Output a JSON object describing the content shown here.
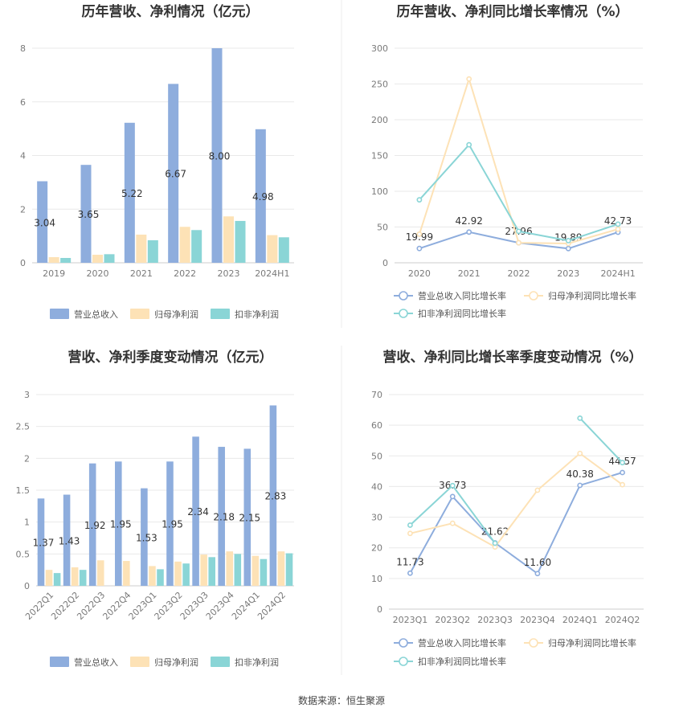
{
  "source": "数据来源：恒生聚源",
  "chart_data": [
    {
      "type": "bar",
      "title": "历年营收、净利情况（亿元）",
      "categories": [
        "2019",
        "2020",
        "2021",
        "2022",
        "2023",
        "2024H1"
      ],
      "ylim": [
        0,
        8
      ],
      "yticks": [
        "0",
        "2",
        "4",
        "6",
        "8"
      ],
      "grid": true,
      "legend_position": "bottom",
      "series": [
        {
          "name": "营业总收入",
          "color": "#8eaddd",
          "values": [
            3.04,
            3.65,
            5.22,
            6.67,
            8.0,
            4.98
          ],
          "labels": [
            "3.04",
            "3.65",
            "5.22",
            "6.67",
            "8.00",
            "4.98"
          ]
        },
        {
          "name": "归母净利润",
          "color": "#fde2b6",
          "values": [
            0.21,
            0.3,
            1.05,
            1.34,
            1.73,
            1.03
          ],
          "labels": []
        },
        {
          "name": "扣非净利润",
          "color": "#8ad5d6",
          "values": [
            0.18,
            0.32,
            0.84,
            1.22,
            1.56,
            0.95
          ],
          "labels": []
        }
      ]
    },
    {
      "type": "line",
      "title": "历年营收、净利同比增长率情况（%）",
      "categories": [
        "2020",
        "2021",
        "2022",
        "2023",
        "2024H1"
      ],
      "ylim": [
        0,
        300
      ],
      "yticks": [
        "0",
        "50",
        "100",
        "150",
        "200",
        "250",
        "300"
      ],
      "grid": true,
      "legend_position": "bottom",
      "series": [
        {
          "name": "营业总收入同比增长率",
          "color": "#8eaddd",
          "values": [
            19.99,
            42.92,
            27.96,
            19.89,
            42.73
          ],
          "labels": [
            "19.99",
            "42.92",
            "27.96",
            "19.89",
            "42.73"
          ]
        },
        {
          "name": "归母净利润同比增长率",
          "color": "#fde2b6",
          "values": [
            40,
            257,
            28,
            27,
            47
          ],
          "labels": []
        },
        {
          "name": "扣非净利润同比增长率",
          "color": "#8ad5d6",
          "values": [
            88,
            165,
            44,
            31,
            54
          ],
          "labels": []
        }
      ]
    },
    {
      "type": "bar",
      "title": "营收、净利季度变动情况（亿元）",
      "categories": [
        "2022Q1",
        "2022Q2",
        "2022Q3",
        "2022Q4",
        "2023Q1",
        "2023Q2",
        "2023Q3",
        "2023Q4",
        "2024Q1",
        "2024Q2"
      ],
      "ylim": [
        0,
        3
      ],
      "yticks": [
        "0",
        "0.5",
        "1",
        "1.5",
        "2",
        "2.5",
        "3"
      ],
      "grid": true,
      "legend_position": "bottom",
      "series": [
        {
          "name": "营业总收入",
          "color": "#8eaddd",
          "values": [
            1.37,
            1.43,
            1.92,
            1.95,
            1.53,
            1.95,
            2.34,
            2.18,
            2.15,
            2.83
          ],
          "labels": [
            "1.37",
            "1.43",
            "1.92",
            "1.95",
            "1.53",
            "1.95",
            "2.34",
            "2.18",
            "2.15",
            "2.83"
          ]
        },
        {
          "name": "归母净利润",
          "color": "#fde2b6",
          "values": [
            0.25,
            0.29,
            0.4,
            0.39,
            0.31,
            0.38,
            0.49,
            0.54,
            0.47,
            0.54
          ],
          "labels": []
        },
        {
          "name": "扣非净利润",
          "color": "#8ad5d6",
          "values": [
            0.2,
            0.25,
            null,
            null,
            0.26,
            0.35,
            0.45,
            0.5,
            0.42,
            0.51
          ],
          "labels": []
        }
      ]
    },
    {
      "type": "line",
      "title": "营收、净利同比增长率季度变动情况（%）",
      "categories": [
        "2023Q1",
        "2023Q2",
        "2023Q3",
        "2023Q4",
        "2024Q1",
        "2024Q2"
      ],
      "ylim": [
        0,
        70
      ],
      "yticks": [
        "0",
        "10",
        "20",
        "30",
        "40",
        "50",
        "60",
        "70"
      ],
      "grid": true,
      "legend_position": "bottom",
      "series": [
        {
          "name": "营业总收入同比增长率",
          "color": "#8eaddd",
          "values": [
            11.73,
            36.73,
            21.62,
            11.6,
            40.38,
            44.57
          ],
          "labels": [
            "11.73",
            "36.73",
            "21.62",
            "11.60",
            "40.38",
            "44.57"
          ]
        },
        {
          "name": "归母净利润同比增长率",
          "color": "#fde2b6",
          "values": [
            24.7,
            28,
            20.3,
            38.8,
            50.8,
            40.6
          ],
          "labels": []
        },
        {
          "name": "扣非净利润同比增长率",
          "color": "#8ad5d6",
          "values": [
            27.4,
            40.3,
            21.5,
            null,
            62.3,
            47.8
          ],
          "labels": []
        }
      ]
    }
  ]
}
